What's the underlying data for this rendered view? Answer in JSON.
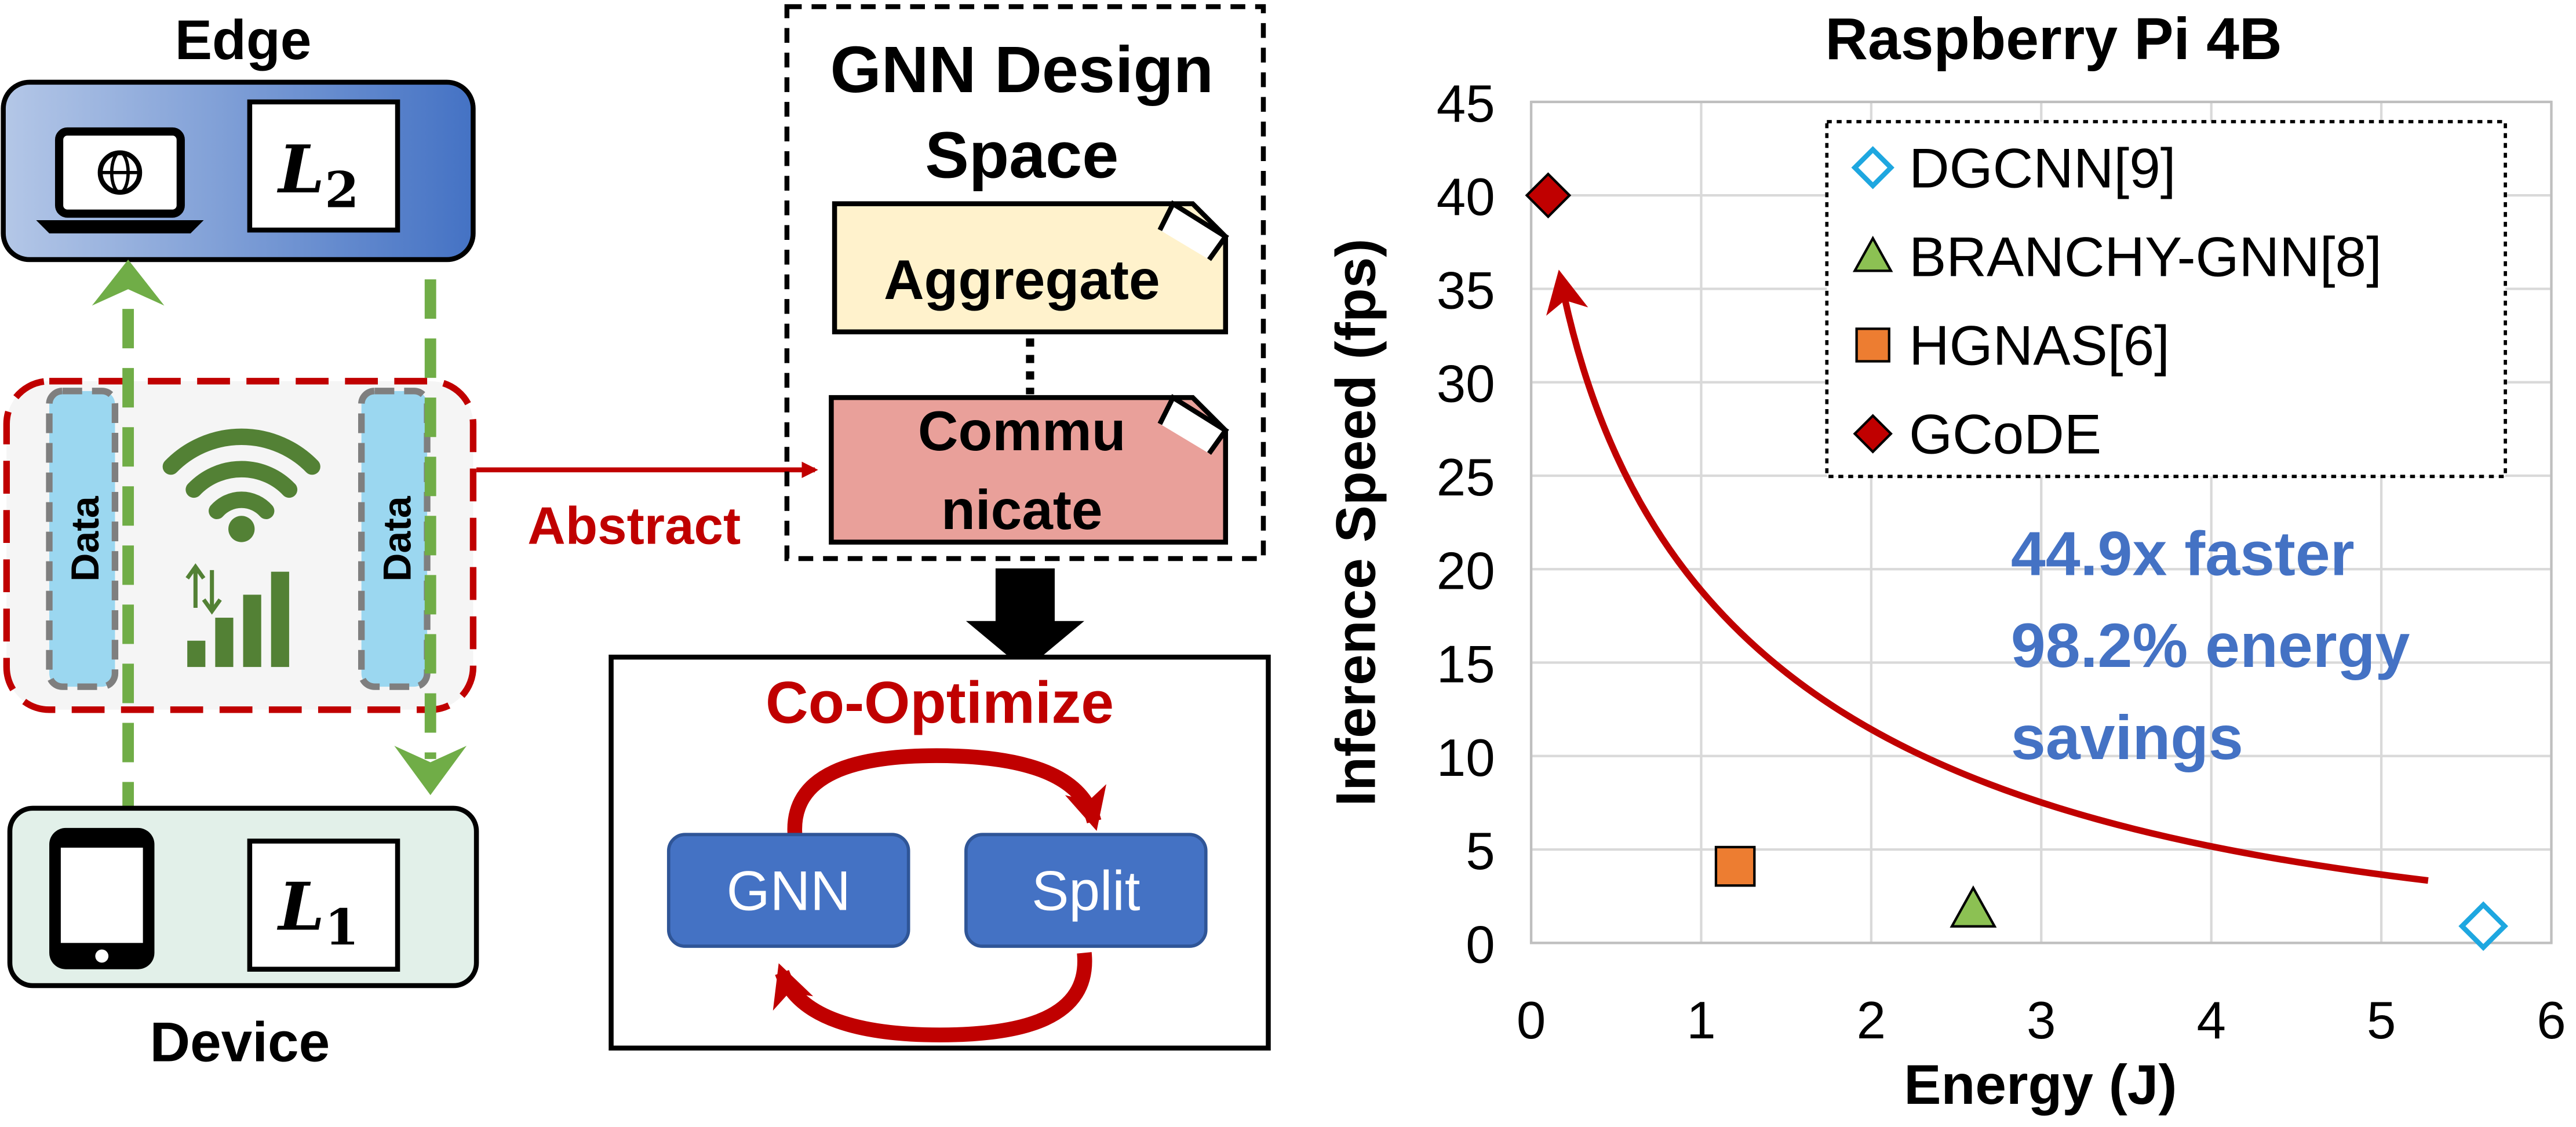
{
  "left": {
    "edge_label": "Edge",
    "device_label": "Device",
    "edge_layer": {
      "letter": "L",
      "sub": "2"
    },
    "device_layer": {
      "letter": "L",
      "sub": "1"
    },
    "data_left": "Data",
    "data_right": "Data",
    "abstract_label": "Abstract",
    "icons": [
      "laptop-globe-icon",
      "phone-icon",
      "wifi-icon",
      "up-down-arrows-icon",
      "signal-bars-icon"
    ]
  },
  "middle": {
    "design_title_1": "GNN Design",
    "design_title_2": "Space",
    "aggregate": "Aggregate",
    "communicate_1": "Commu",
    "communicate_2": "nicate",
    "cooptimize": "Co-Optimize",
    "gnn": "GNN",
    "split": "Split"
  },
  "chart_data": {
    "type": "scatter",
    "title": "Raspberry Pi 4B",
    "xlabel": "Energy (J)",
    "ylabel": "Inference Speed (fps)",
    "xlim": [
      0,
      6
    ],
    "ylim": [
      0,
      45
    ],
    "xticks": [
      "0",
      "1",
      "2",
      "3",
      "4",
      "5",
      "6"
    ],
    "yticks": [
      "0",
      "5",
      "10",
      "15",
      "20",
      "25",
      "30",
      "35",
      "40",
      "45"
    ],
    "grid": true,
    "legend_position": "top-right",
    "series": [
      {
        "name": "DGCNN[9]",
        "marker": "diamond-open",
        "color": "#1ea7e0",
        "points": [
          {
            "x": 5.6,
            "y": 0.9
          }
        ]
      },
      {
        "name": "BRANCHY-GNN[8]",
        "marker": "triangle",
        "color": "#8cc153",
        "points": [
          {
            "x": 2.6,
            "y": 1.8
          }
        ]
      },
      {
        "name": "HGNAS[6]",
        "marker": "square",
        "color": "#ed7d31",
        "points": [
          {
            "x": 1.2,
            "y": 4.1
          }
        ]
      },
      {
        "name": "GCoDE",
        "marker": "diamond",
        "color": "#c00000",
        "points": [
          {
            "x": 0.1,
            "y": 40.0
          }
        ]
      }
    ],
    "annotation": [
      "44.9x faster",
      "98.2% energy",
      "savings"
    ]
  },
  "colors": {
    "accent_red": "#c00000",
    "annotation_blue": "#4472c4",
    "gnn_blue": "#4472c4",
    "green_dash": "#70ad47",
    "data_cyan": "#9bd7f0",
    "aggregate_fill": "#fff2cc",
    "communicate_fill": "#e9a09a",
    "edge_fill": "#8faadc",
    "device_fill": "#e2f0e9"
  }
}
